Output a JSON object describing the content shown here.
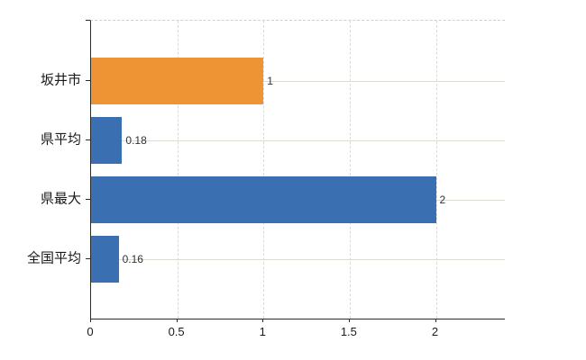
{
  "chart_data": {
    "type": "bar",
    "orientation": "horizontal",
    "title": "",
    "categories": [
      "坂井市",
      "県平均",
      "県最大",
      "全国平均"
    ],
    "values": [
      1,
      0.18,
      2,
      0.16
    ],
    "value_labels": [
      "1",
      "0.18",
      "2",
      "0.16"
    ],
    "bar_colors": [
      "#ee9434",
      "#3a6fb2",
      "#3a6fb2",
      "#3a6fb2"
    ],
    "x_ticks": [
      0,
      0.5,
      1,
      1.5,
      2
    ],
    "x_tick_labels": [
      "0",
      "0.5",
      "1",
      "1.5",
      "2"
    ],
    "xlim": [
      0,
      2.4
    ],
    "grid": {
      "vertical_dashed": true,
      "horizontal_solid": true,
      "top_border_dashed": true
    },
    "legend": "none",
    "colors": {
      "accent_orange": "#ee9434",
      "accent_blue": "#3a6fb2",
      "axis": "#2b2b2b",
      "h_grid": "#d7ded4",
      "v_grid": "#d9d9d9",
      "top_border": "#ccd2cc",
      "category_text": "#1a1a1a",
      "value_text": "#333333"
    }
  }
}
